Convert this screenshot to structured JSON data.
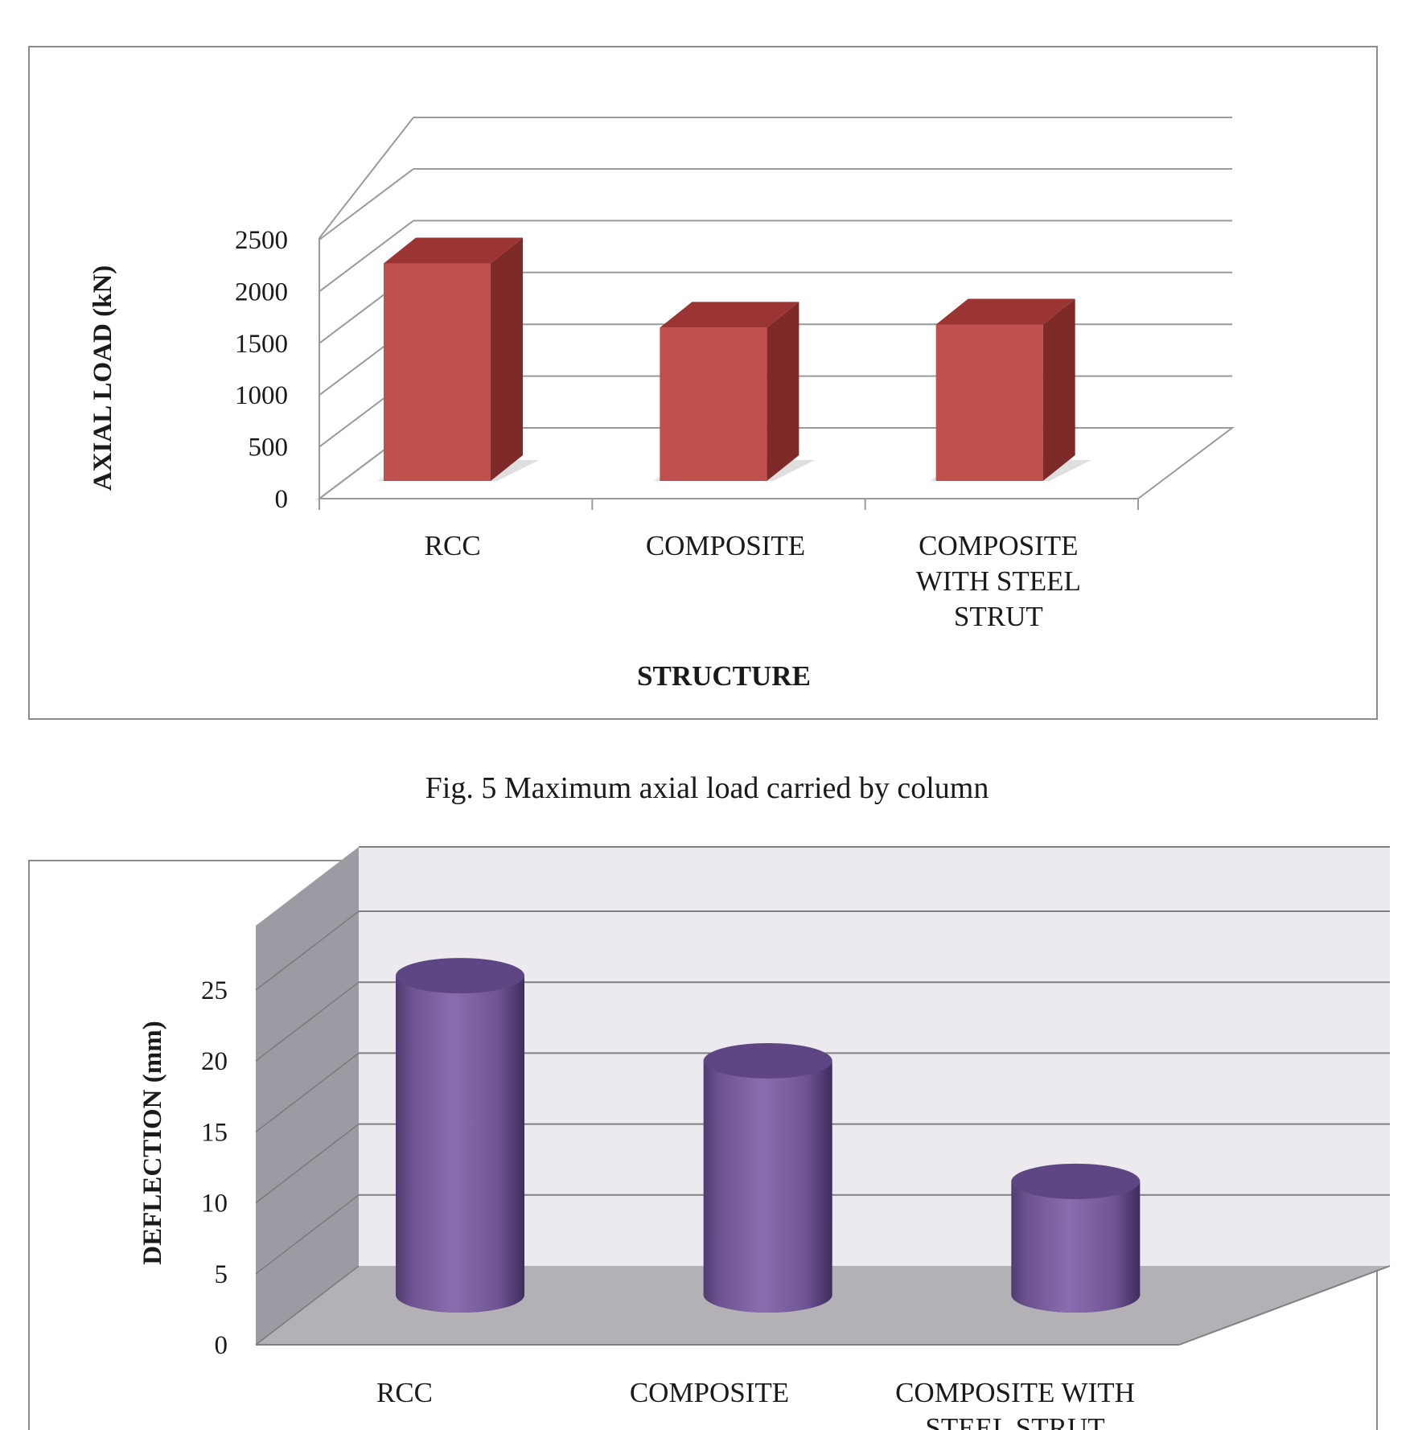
{
  "figure1": {
    "caption": "Fig. 5  Maximum axial load carried by column"
  },
  "chart_data": [
    {
      "type": "bar",
      "style": "3d-box",
      "categories": [
        "RCC",
        "COMPOSITE",
        "COMPOSITE WITH STEEL STRUT"
      ],
      "category_lines": [
        [
          "RCC"
        ],
        [
          "COMPOSITE"
        ],
        [
          "COMPOSITE",
          "WITH STEEL",
          "STRUT"
        ]
      ],
      "values": [
        2100,
        1480,
        1510
      ],
      "title": "",
      "xlabel": "STRUCTURE",
      "ylabel": "AXIAL LOAD (kN)",
      "ylim": [
        0,
        2500
      ],
      "yticks": [
        0,
        500,
        1000,
        1500,
        2000,
        2500
      ],
      "grid": true,
      "colors": {
        "front": "#c0504d",
        "side": "#7d2a29",
        "top": "#9b3534"
      }
    },
    {
      "type": "bar",
      "style": "3d-cylinder",
      "categories": [
        "RCC",
        "COMPOSITE",
        "COMPOSITE WITH STEEL STRUT"
      ],
      "category_lines": [
        [
          "RCC"
        ],
        [
          "COMPOSITE"
        ],
        [
          "COMPOSITE WITH",
          "STEEL STRUT"
        ]
      ],
      "values": [
        22.5,
        16.5,
        8.0
      ],
      "title": "",
      "xlabel": "",
      "ylabel": "DEFLECTION (mm)",
      "ylim": [
        0,
        25
      ],
      "yticks": [
        0,
        5,
        10,
        15,
        20,
        25
      ],
      "grid": true,
      "colors": {
        "body": "#8064a2",
        "dark": "#4f3b70",
        "top": "#5e4583",
        "wall": "#ece9ef",
        "side_wall": "#9e9aa3",
        "floor": "#b3b0b6"
      }
    }
  ]
}
